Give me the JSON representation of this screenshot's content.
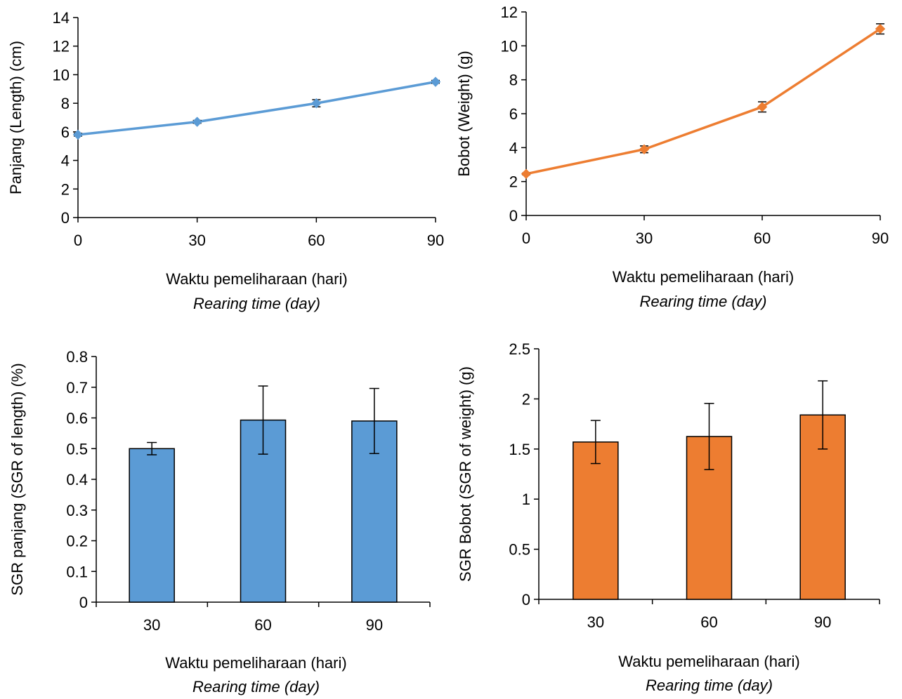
{
  "chart_data": [
    {
      "type": "line",
      "color": "#5B9BD5",
      "x": [
        0,
        30,
        60,
        90
      ],
      "series": [
        {
          "values": [
            5.8,
            6.7,
            8.0,
            9.5
          ],
          "errors": [
            0.1,
            0.1,
            0.25,
            0.1
          ]
        }
      ],
      "xlabel": "Waktu pemeliharaan (hari)",
      "xlabel_sub": "Rearing time (day)",
      "ylabel": "Panjang (Length) (cm)",
      "ylim": [
        0,
        14
      ],
      "yticks": [
        "0",
        "2",
        "4",
        "6",
        "8",
        "10",
        "12",
        "14"
      ],
      "xticks": [
        "0",
        "30",
        "60",
        "90"
      ],
      "grid": false
    },
    {
      "type": "line",
      "color": "#ED7D31",
      "x": [
        0,
        30,
        60,
        90
      ],
      "series": [
        {
          "values": [
            2.45,
            3.9,
            6.4,
            11.0
          ],
          "errors": [
            0.05,
            0.2,
            0.3,
            0.3
          ]
        }
      ],
      "xlabel": "Waktu pemeliharaan (hari)",
      "xlabel_sub": "Rearing time (day)",
      "ylabel": "Bobot (Weight) (g)",
      "ylim": [
        0,
        12
      ],
      "yticks": [
        "0",
        "2",
        "4",
        "6",
        "8",
        "10",
        "12"
      ],
      "xticks": [
        "0",
        "30",
        "60",
        "90"
      ],
      "grid": false
    },
    {
      "type": "bar",
      "color": "#5B9BD5",
      "categories": [
        "30",
        "60",
        "90"
      ],
      "series": [
        {
          "values": [
            0.5,
            0.593,
            0.59
          ],
          "errors": [
            0.02,
            0.111,
            0.106
          ]
        }
      ],
      "xlabel": "Waktu pemeliharaan (hari)",
      "xlabel_sub": "Rearing time (day)",
      "ylabel": "SGR panjang (SGR of length) (%)",
      "ylim": [
        0,
        0.8
      ],
      "yticks": [
        "0",
        "0.1",
        "0.2",
        "0.3",
        "0.4",
        "0.5",
        "0.6",
        "0.7",
        "0.8"
      ],
      "grid": false
    },
    {
      "type": "bar",
      "color": "#ED7D31",
      "categories": [
        "30",
        "60",
        "90"
      ],
      "series": [
        {
          "values": [
            1.57,
            1.625,
            1.84
          ],
          "errors": [
            0.215,
            0.33,
            0.34
          ]
        }
      ],
      "xlabel": "Waktu pemeliharaan (hari)",
      "xlabel_sub": "Rearing time (day)",
      "ylabel": "SGR Bobot  (SGR of weight) (g)",
      "ylim": [
        0,
        2.5
      ],
      "yticks": [
        "0",
        "0.5",
        "1",
        "1.5",
        "2",
        "2.5"
      ],
      "grid": false
    }
  ]
}
